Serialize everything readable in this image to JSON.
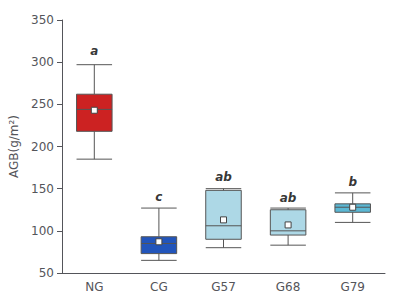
{
  "chart_data": {
    "type": "box",
    "categories": [
      "NG",
      "CG",
      "G57",
      "G68",
      "G79"
    ],
    "colors": [
      "#CC2222",
      "#2255BB",
      "#ADD8E6",
      "#ADD8E6",
      "#5BB8D4"
    ],
    "ylabel": "AGB(g/m²)",
    "ylim": [
      50,
      350
    ],
    "yticks": [
      50,
      100,
      150,
      200,
      250,
      300,
      350
    ],
    "grid": false,
    "boxes": [
      {
        "q1": 218,
        "median": 244,
        "q3": 262,
        "mean": 243,
        "whislo": 185,
        "whishi": 297
      },
      {
        "q1": 73,
        "median": 85,
        "q3": 93,
        "mean": 87,
        "whislo": 65,
        "whishi": 127
      },
      {
        "q1": 90,
        "median": 106,
        "q3": 148,
        "mean": 113,
        "whislo": 80,
        "whishi": 150
      },
      {
        "q1": 95,
        "median": 100,
        "q3": 125,
        "mean": 107,
        "whislo": 83,
        "whishi": 127
      },
      {
        "q1": 122,
        "median": 128,
        "q3": 132,
        "mean": 128,
        "whislo": 110,
        "whishi": 145
      }
    ],
    "annotations": [
      {
        "text": "a",
        "x": "NG",
        "y": 305
      },
      {
        "text": "c",
        "x": "CG",
        "y": 132
      },
      {
        "text": "ab",
        "x": "G57",
        "y": 155
      },
      {
        "text": "ab",
        "x": "G68",
        "y": 131
      },
      {
        "text": "b",
        "x": "G79",
        "y": 150
      }
    ]
  }
}
